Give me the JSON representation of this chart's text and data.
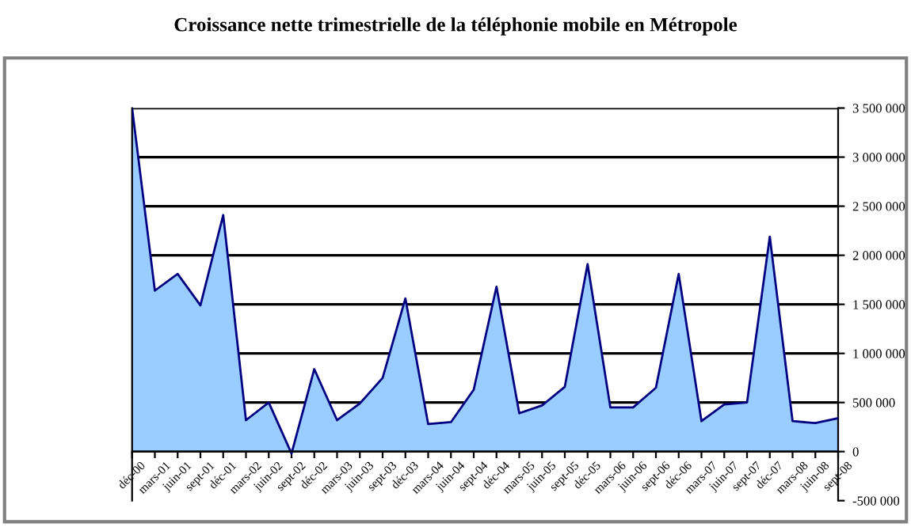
{
  "chart_data": {
    "type": "area",
    "title": "Croissance nette trimestrielle de la téléphonie mobile en Métropole",
    "categories": [
      "déc-00",
      "mars-01",
      "juin-01",
      "sept-01",
      "déc-01",
      "mars-02",
      "juin-02",
      "sept-02",
      "déc-02",
      "mars-03",
      "juin-03",
      "sept-03",
      "déc-03",
      "mars-04",
      "juin-04",
      "sept-04",
      "déc-04",
      "mars-05",
      "juin-05",
      "sept-05",
      "déc-05",
      "mars-06",
      "juin-06",
      "sept-06",
      "déc-06",
      "mars-07",
      "juin-07",
      "sept-07",
      "déc-07",
      "mars-08",
      "juin-08",
      "sept-08"
    ],
    "series": [
      {
        "color": "#99ccff",
        "values": [
          3500000,
          1640000,
          1810000,
          1490000,
          2410000,
          320000,
          500000,
          -20000,
          840000,
          320000,
          490000,
          750000,
          1560000,
          280000,
          300000,
          630000,
          1680000,
          390000,
          470000,
          660000,
          1910000,
          450000,
          450000,
          650000,
          1810000,
          310000,
          480000,
          500000,
          2190000,
          310000,
          290000,
          340000
        ]
      }
    ],
    "ylim": [
      -500000,
      3500000
    ],
    "yticks": [
      {
        "value": -500000,
        "label": "-500 000"
      },
      {
        "value": 0,
        "label": "0"
      },
      {
        "value": 500000,
        "label": "500 000"
      },
      {
        "value": 1000000,
        "label": "1 000 000"
      },
      {
        "value": 1500000,
        "label": "1 500 000"
      },
      {
        "value": 2000000,
        "label": "2 000 000"
      },
      {
        "value": 2500000,
        "label": "2 500 000"
      },
      {
        "value": 3000000,
        "label": "3 000 000"
      },
      {
        "value": 3500000,
        "label": "3 500 000"
      }
    ],
    "grid": "y"
  }
}
